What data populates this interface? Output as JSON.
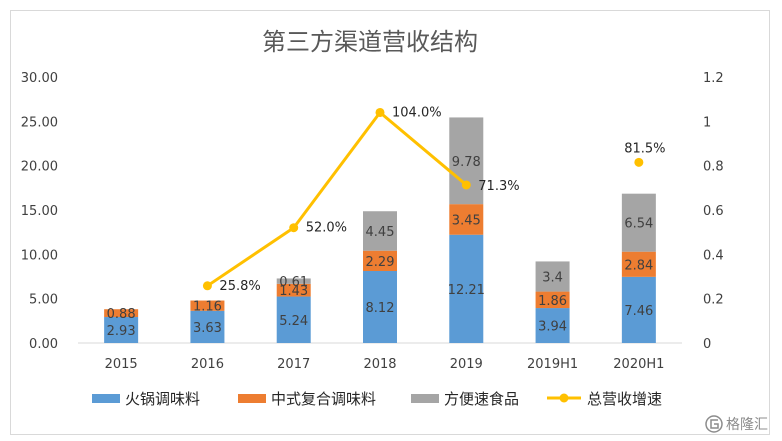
{
  "chart_data": {
    "type": "bar",
    "title": "第三方渠道营收结构",
    "categories": [
      "2015",
      "2016",
      "2017",
      "2018",
      "2019",
      "2019H1",
      "2020H1"
    ],
    "y_left": {
      "ticks": [
        "0.00",
        "5.00",
        "10.00",
        "15.00",
        "20.00",
        "25.00",
        "30.00"
      ],
      "ylim": [
        0,
        30
      ]
    },
    "y_right": {
      "ticks": [
        "0",
        "0.2",
        "0.4",
        "0.6",
        "0.8",
        "1",
        "1.2"
      ],
      "ylim": [
        0,
        1.2
      ]
    },
    "series": [
      {
        "name": "火锅调味料",
        "kind": "stacked-bar",
        "color": "#5b9bd5",
        "values": [
          2.93,
          3.63,
          5.24,
          8.12,
          12.21,
          3.94,
          7.46
        ],
        "labels": [
          "2.93",
          "3.63",
          "5.24",
          "8.12",
          "12.21",
          "3.94",
          "7.46"
        ]
      },
      {
        "name": "中式复合调味料",
        "kind": "stacked-bar",
        "color": "#ed7d31",
        "values": [
          0.88,
          1.16,
          1.43,
          2.29,
          3.45,
          1.86,
          2.84
        ],
        "labels": [
          "0.88",
          "1.16",
          "1.43",
          "2.29",
          "3.45",
          "1.86",
          "2.84"
        ]
      },
      {
        "name": "方便速食品",
        "kind": "stacked-bar",
        "color": "#a5a5a5",
        "values": [
          0,
          0,
          0.61,
          4.45,
          9.78,
          3.4,
          6.54
        ],
        "labels": [
          "",
          "",
          "0.61",
          "4.45",
          "9.78",
          "3.4",
          "6.54"
        ]
      },
      {
        "name": "总营收增速",
        "kind": "line",
        "axis": "right",
        "color": "#ffc000",
        "values": [
          null,
          0.258,
          0.52,
          1.04,
          0.713,
          null,
          0.815
        ],
        "labels": [
          "",
          "25.8%",
          "52.0%",
          "104.0%",
          "71.3%",
          "",
          "81.5%"
        ]
      }
    ],
    "legend": "bottom",
    "grid": false
  },
  "watermark": {
    "text": "格隆汇",
    "icon": "gelonghui-logo-icon"
  }
}
